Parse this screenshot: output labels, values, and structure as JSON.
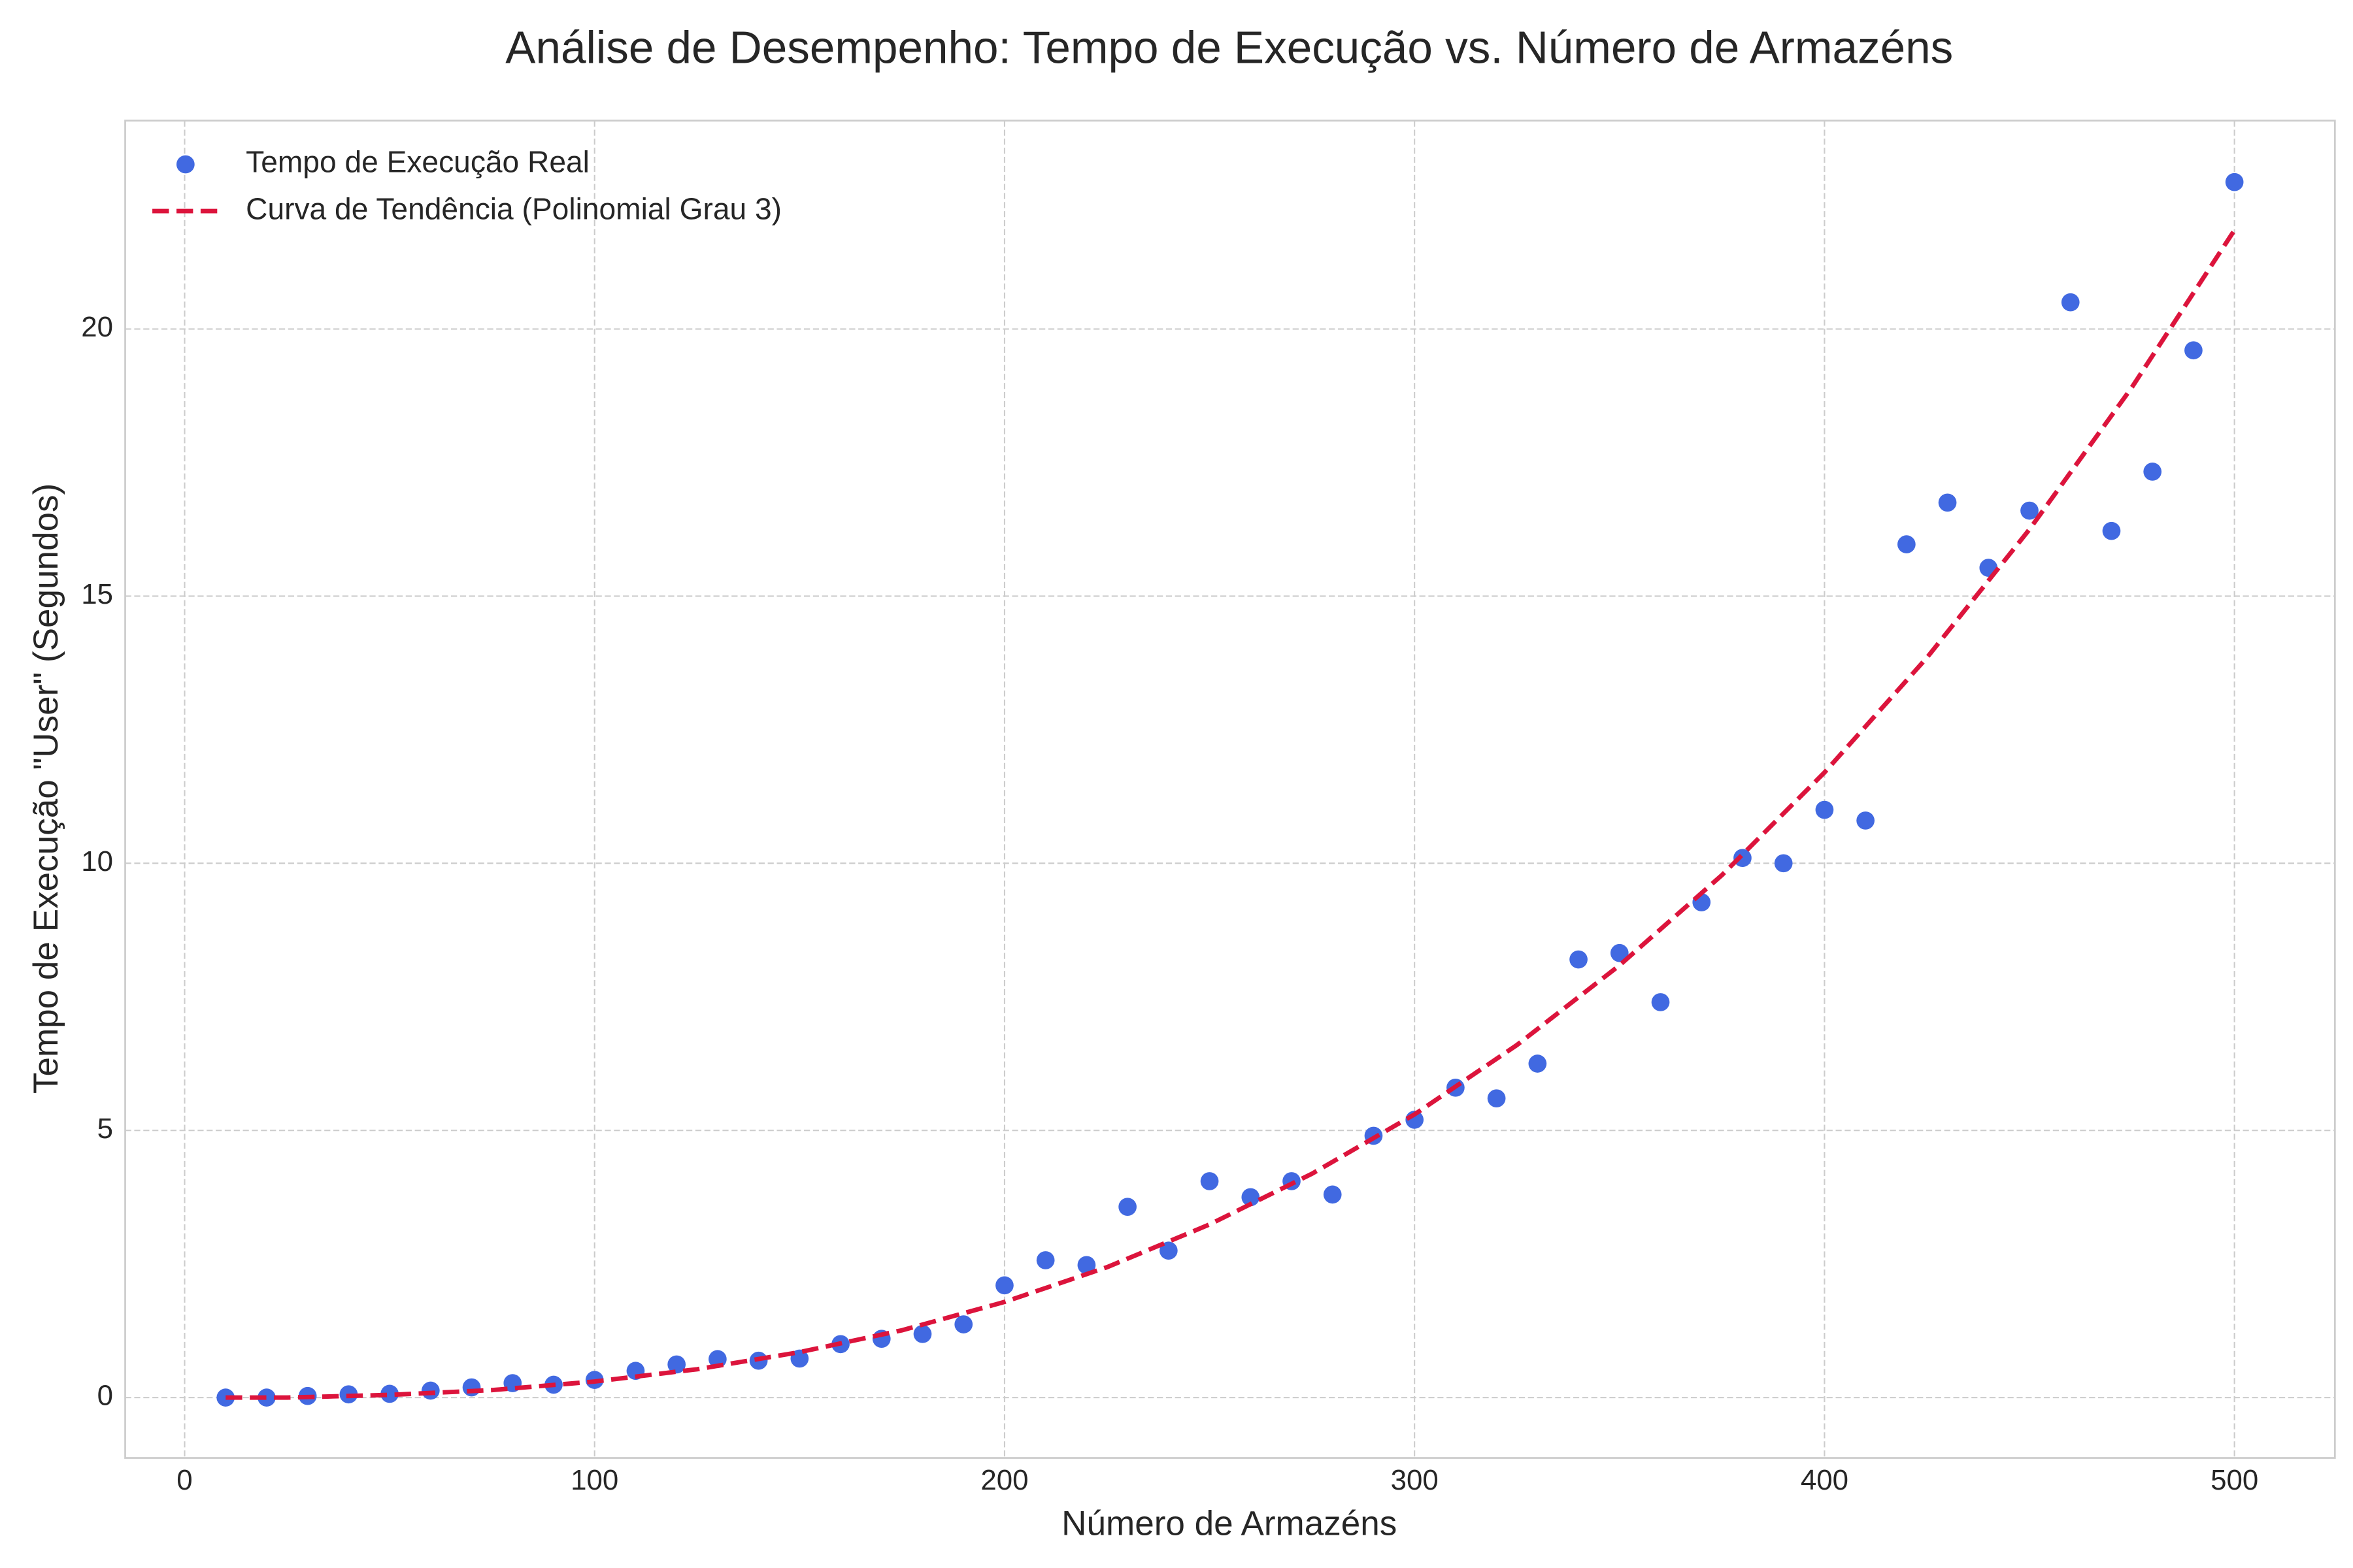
{
  "chart_data": {
    "type": "scatter",
    "title": "Análise de Desempenho: Tempo de Execução vs. Número de Armazéns",
    "x_label": "Número de Armazéns",
    "y_label": "Tempo de Execução \"User\" (Segundos)",
    "xlim": [
      -14.5,
      524.5
    ],
    "ylim": [
      -1.13,
      23.9
    ],
    "xticks": [
      0,
      100,
      200,
      300,
      400,
      500
    ],
    "yticks": [
      0,
      5,
      10,
      15,
      20
    ],
    "grid": true,
    "legend": "upper left",
    "series": [
      {
        "name": "Tempo de Execução Real",
        "type": "scatter",
        "color": "#4169e1",
        "x": [
          10,
          20,
          30,
          40,
          50,
          60,
          70,
          80,
          90,
          100,
          110,
          120,
          130,
          140,
          150,
          160,
          170,
          180,
          190,
          200,
          210,
          220,
          230,
          240,
          250,
          260,
          270,
          280,
          290,
          300,
          310,
          320,
          330,
          340,
          350,
          360,
          370,
          380,
          390,
          400,
          410,
          420,
          430,
          440,
          450,
          460,
          470,
          480,
          490,
          500
        ],
        "values": [
          0.0,
          0.0,
          0.03,
          0.06,
          0.07,
          0.13,
          0.19,
          0.27,
          0.24,
          0.33,
          0.5,
          0.62,
          0.72,
          0.69,
          0.73,
          1.0,
          1.1,
          1.19,
          1.37,
          2.1,
          2.57,
          2.48,
          3.57,
          2.75,
          4.05,
          3.75,
          4.05,
          3.8,
          4.9,
          5.2,
          5.8,
          5.6,
          6.25,
          8.2,
          8.32,
          7.4,
          9.27,
          10.1,
          10.0,
          11.0,
          10.8,
          15.97,
          16.75,
          15.53,
          16.6,
          20.5,
          16.22,
          17.33,
          19.6,
          22.75
        ]
      },
      {
        "name": "Curva de Tendência (Polinomial Grau 3)",
        "type": "line",
        "color": "#dc143c",
        "x": [
          10,
          25,
          50,
          75,
          100,
          125,
          150,
          175,
          200,
          225,
          250,
          275,
          300,
          325,
          350,
          375,
          400,
          425,
          450,
          475,
          500
        ],
        "values": [
          0.0,
          0.0,
          0.05,
          0.14,
          0.3,
          0.53,
          0.85,
          1.26,
          1.79,
          2.44,
          3.24,
          4.19,
          5.3,
          6.6,
          8.09,
          9.78,
          11.7,
          13.85,
          16.25,
          18.91,
          21.85
        ]
      }
    ]
  }
}
